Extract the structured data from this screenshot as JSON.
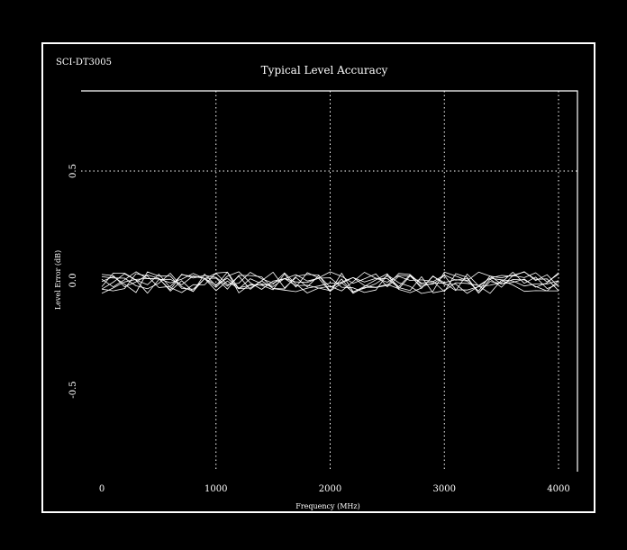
{
  "chart_data": {
    "type": "line",
    "model_label": "SCI-DT3005",
    "title": "Typical Level Accuracy",
    "xlabel": "Frequency (MHz)",
    "ylabel": "Level Error (dB)",
    "xlim": [
      0,
      4000
    ],
    "ylim": [
      -0.5,
      0.5
    ],
    "x_ticks": [
      0,
      1000,
      2000,
      3000,
      4000
    ],
    "y_ticks": [
      0.5,
      0.0,
      -0.5
    ],
    "x_tick_labels": [
      "0",
      "1000",
      "2000",
      "3000",
      "4000"
    ],
    "y_tick_labels": [
      "0.5",
      "0.0",
      "-0.5"
    ],
    "grid": true,
    "series_count": 8,
    "x": [
      0,
      100,
      200,
      300,
      400,
      500,
      600,
      700,
      800,
      900,
      1000,
      1100,
      1200,
      1300,
      1400,
      1500,
      1600,
      1700,
      1800,
      1900,
      2000,
      2100,
      2200,
      2300,
      2400,
      2500,
      2600,
      2700,
      2800,
      2900,
      3000,
      3100,
      3200,
      3300,
      3400,
      3500,
      3600,
      3700,
      3800,
      3900,
      4000
    ],
    "approx_range": [
      -0.06,
      0.04
    ],
    "colors": {
      "background": "#000000",
      "foreground": "#ffffff"
    }
  }
}
